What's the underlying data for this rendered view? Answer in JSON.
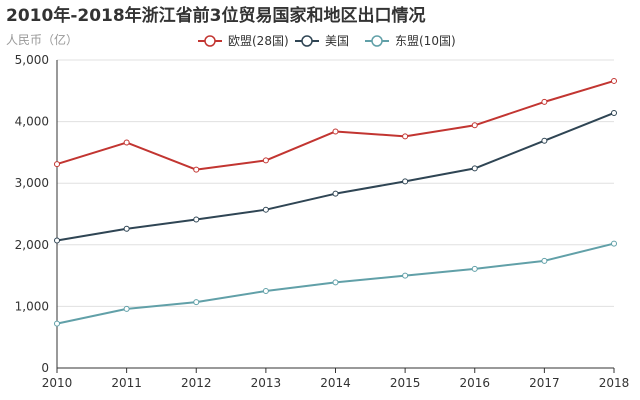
{
  "colors": {
    "eu": "#c23531",
    "us": "#2f4554",
    "asean": "#61a0a8",
    "text": "#333333",
    "muted": "#999999",
    "grid": "#e0e0e0"
  },
  "chart_data": {
    "type": "line",
    "title": "2010年-2018年浙江省前3位贸易国家和地区出口情况",
    "ylabel": "人民币（亿）",
    "xlabel": "",
    "categories": [
      "2010",
      "2011",
      "2012",
      "2013",
      "2014",
      "2015",
      "2016",
      "2017",
      "2018"
    ],
    "ylim": [
      0,
      5000
    ],
    "yticks": [
      0,
      1000,
      2000,
      3000,
      4000,
      5000
    ],
    "ytick_labels": [
      "0",
      "1,000",
      "2,000",
      "3,000",
      "4,000",
      "5,000"
    ],
    "grid": true,
    "legend_position": "top-center",
    "series": [
      {
        "key": "eu",
        "name": "欧盟(28国)",
        "values": [
          3310,
          3660,
          3220,
          3370,
          3840,
          3760,
          3940,
          4320,
          4660
        ]
      },
      {
        "key": "us",
        "name": "美国",
        "values": [
          2070,
          2260,
          2410,
          2570,
          2830,
          3030,
          3240,
          3690,
          4140
        ]
      },
      {
        "key": "asean",
        "name": "东盟(10国)",
        "values": [
          720,
          960,
          1070,
          1250,
          1390,
          1500,
          1610,
          1740,
          2020
        ]
      }
    ]
  }
}
